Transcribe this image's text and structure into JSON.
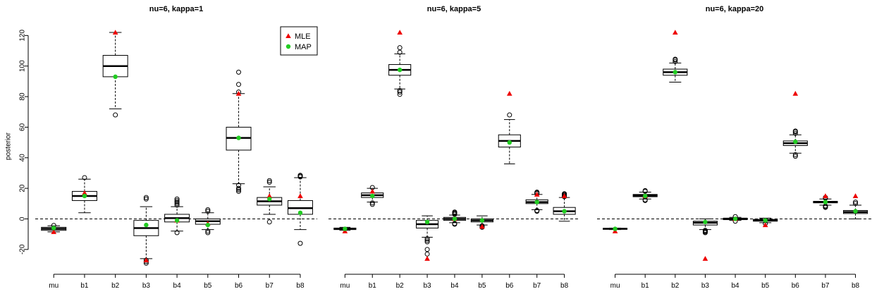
{
  "colors": {
    "mle": "#ee0000",
    "map": "#22cc22",
    "box": "#000000",
    "reference_line": "#000000"
  },
  "chart_data": [
    {
      "type": "boxplot",
      "title": "nu=6, kappa=1",
      "ylabel": "posterior",
      "ylim": [
        -33,
        128
      ],
      "yticks": [
        -20,
        0,
        20,
        40,
        60,
        80,
        100,
        120
      ],
      "reference_line_y": 0,
      "legend": {
        "placement": "top-right",
        "entries": [
          {
            "label": "MLE",
            "marker": "triangle"
          },
          {
            "label": "MAP",
            "marker": "circle"
          }
        ]
      },
      "categories": [
        "mu",
        "b1",
        "b2",
        "b3",
        "b4",
        "b5",
        "b6",
        "b7",
        "b8"
      ],
      "boxes": [
        {
          "q1": -7.5,
          "median": -6.5,
          "q3": -5.5,
          "whisker_low": -8.5,
          "whisker_high": -4.5,
          "outliers": [
            -4.3
          ]
        },
        {
          "q1": 12,
          "median": 15,
          "q3": 18,
          "whisker_low": 4,
          "whisker_high": 26,
          "outliers": [
            27
          ]
        },
        {
          "q1": 93,
          "median": 100,
          "q3": 107,
          "whisker_low": 72,
          "whisker_high": 122,
          "outliers": [
            68
          ]
        },
        {
          "q1": -11,
          "median": -6,
          "q3": -1,
          "whisker_low": -26,
          "whisker_high": 8,
          "outliers": [
            -27,
            -28,
            -29,
            14,
            13
          ]
        },
        {
          "q1": -2,
          "median": 0.5,
          "q3": 3,
          "whisker_low": -8,
          "whisker_high": 8,
          "outliers": [
            -9,
            9,
            10,
            11,
            12,
            13
          ]
        },
        {
          "q1": -3.5,
          "median": -1.5,
          "q3": 0,
          "whisker_low": -7,
          "whisker_high": 4,
          "outliers": [
            -8,
            -9,
            5,
            6
          ]
        },
        {
          "q1": 45,
          "median": 53,
          "q3": 60,
          "whisker_low": 23,
          "whisker_high": 82,
          "outliers": [
            18,
            19,
            20,
            22,
            83,
            88,
            96
          ]
        },
        {
          "q1": 9,
          "median": 11.5,
          "q3": 14,
          "whisker_low": 3,
          "whisker_high": 21,
          "outliers": [
            -2,
            24,
            25
          ]
        },
        {
          "q1": 3,
          "median": 7,
          "q3": 12,
          "whisker_low": -7,
          "whisker_high": 27,
          "outliers": [
            -16,
            27.5,
            28,
            28.5
          ]
        }
      ],
      "mle": [
        -8.5,
        17,
        122,
        -27,
        -1,
        -3,
        82,
        15,
        15
      ],
      "map": [
        -6,
        15,
        93,
        -4,
        -1,
        -4,
        53,
        13,
        4
      ]
    },
    {
      "type": "boxplot",
      "title": "nu=6, kappa=5",
      "ylim": [
        -33,
        128
      ],
      "reference_line_y": 0,
      "categories": [
        "mu",
        "b1",
        "b2",
        "b3",
        "b4",
        "b5",
        "b6",
        "b7",
        "b8"
      ],
      "boxes": [
        {
          "q1": -7,
          "median": -6.5,
          "q3": -6,
          "whisker_low": -7.5,
          "whisker_high": -5.5,
          "outliers": []
        },
        {
          "q1": 14,
          "median": 15.5,
          "q3": 17,
          "whisker_low": 11,
          "whisker_high": 20,
          "outliers": [
            9.5,
            10.5,
            20.5
          ]
        },
        {
          "q1": 94,
          "median": 97.5,
          "q3": 101,
          "whisker_low": 85,
          "whisker_high": 108,
          "outliers": [
            81.5,
            83,
            84,
            109,
            112
          ]
        },
        {
          "q1": -6,
          "median": -3.5,
          "q3": -1,
          "whisker_low": -12,
          "whisker_high": 2,
          "outliers": [
            -13,
            -14,
            -15,
            -20,
            -23
          ]
        },
        {
          "q1": -1,
          "median": 0,
          "q3": 1,
          "whisker_low": -2.5,
          "whisker_high": 2.5,
          "outliers": [
            -3,
            -3.5,
            3,
            3.5,
            4,
            4.5
          ]
        },
        {
          "q1": -2,
          "median": -1,
          "q3": 0,
          "whisker_low": -4,
          "whisker_high": 2,
          "outliers": [
            -4.5,
            -5,
            -5.5
          ]
        },
        {
          "q1": 47,
          "median": 51,
          "q3": 55,
          "whisker_low": 36,
          "whisker_high": 65,
          "outliers": [
            68
          ]
        },
        {
          "q1": 10,
          "median": 11,
          "q3": 12.5,
          "whisker_low": 6,
          "whisker_high": 16,
          "outliers": [
            5,
            5.5,
            16.5,
            17,
            17.5
          ]
        },
        {
          "q1": 3,
          "median": 5,
          "q3": 7.5,
          "whisker_low": -1.5,
          "whisker_high": 14,
          "outliers": [
            14.5,
            15,
            15.5,
            16,
            16.5
          ]
        }
      ],
      "mle": [
        -8,
        18,
        122,
        -26,
        0,
        -5,
        82,
        16,
        15
      ],
      "map": [
        -6.5,
        15,
        97.5,
        -2,
        0,
        -1,
        50,
        11,
        5
      ]
    },
    {
      "type": "boxplot",
      "title": "nu=6, kappa=20",
      "ylim": [
        -33,
        128
      ],
      "reference_line_y": 0,
      "categories": [
        "mu",
        "b1",
        "b2",
        "b3",
        "b4",
        "b5",
        "b6",
        "b7",
        "b8"
      ],
      "boxes": [
        {
          "q1": -6.8,
          "median": -6.5,
          "q3": -6.2,
          "whisker_low": -7,
          "whisker_high": -6,
          "outliers": []
        },
        {
          "q1": 14.5,
          "median": 15.3,
          "q3": 16,
          "whisker_low": 13,
          "whisker_high": 17.5,
          "outliers": [
            12,
            12.5,
            18,
            18.5
          ]
        },
        {
          "q1": 94,
          "median": 96,
          "q3": 98,
          "whisker_low": 89.5,
          "whisker_high": 102,
          "outliers": [
            103,
            104,
            104.5
          ]
        },
        {
          "q1": -4,
          "median": -2.5,
          "q3": -1.5,
          "whisker_low": -7,
          "whisker_high": 0,
          "outliers": [
            -7.5,
            -8,
            -8.5,
            -9
          ]
        },
        {
          "q1": -0.5,
          "median": 0,
          "q3": 0.5,
          "whisker_low": -1,
          "whisker_high": 1,
          "outliers": [
            -1.5,
            1.5
          ]
        },
        {
          "q1": -1.5,
          "median": -1,
          "q3": -0.3,
          "whisker_low": -2.5,
          "whisker_high": 0.5,
          "outliers": [
            -3
          ]
        },
        {
          "q1": 48,
          "median": 49.5,
          "q3": 51,
          "whisker_low": 43,
          "whisker_high": 55,
          "outliers": [
            41,
            42,
            56,
            57,
            57.5
          ]
        },
        {
          "q1": 10.5,
          "median": 11,
          "q3": 11.5,
          "whisker_low": 9,
          "whisker_high": 13,
          "outliers": [
            7.5,
            8,
            8.5,
            13.5,
            14
          ]
        },
        {
          "q1": 3.5,
          "median": 4.5,
          "q3": 5.5,
          "whisker_low": 0,
          "whisker_high": 9,
          "outliers": [
            10,
            11
          ]
        }
      ],
      "mle": [
        -8,
        15,
        122,
        -26,
        0,
        -4,
        82,
        15,
        15
      ],
      "map": [
        -6.5,
        15,
        96,
        -2,
        0,
        -1,
        50.5,
        11,
        5
      ]
    }
  ]
}
